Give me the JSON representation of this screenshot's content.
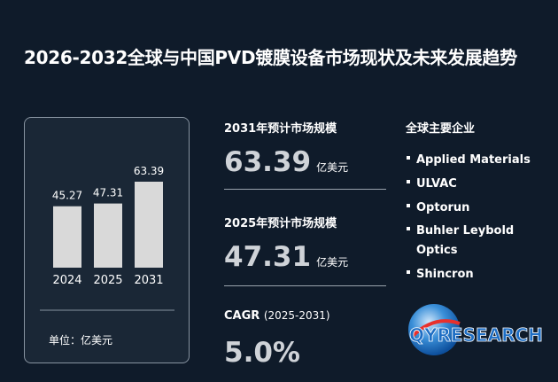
{
  "title": "2026-2032全球与中国PVD镀膜设备市场现状及未来发展趋势",
  "chart_data": {
    "type": "bar",
    "categories": [
      "2024",
      "2025",
      "2031"
    ],
    "values": [
      45.27,
      47.31,
      63.39
    ],
    "color": "#d9d9d9",
    "unit_label": "单位：亿美元"
  },
  "stats": [
    {
      "label": "2031年预计市场规模",
      "value": "63.39",
      "unit": "亿美元"
    },
    {
      "label": "2025年预计市场规模",
      "value": "47.31",
      "unit": "亿美元"
    },
    {
      "label": "CAGR",
      "period": "(2025-2031)",
      "value": "5.0%"
    }
  ],
  "companies": {
    "heading": "全球主要企业",
    "items": [
      "Applied Materials",
      "ULVAC",
      "Optorun",
      "Buhler Leybold Optics",
      "Shincron"
    ]
  },
  "logo": "QYRESEARCH"
}
